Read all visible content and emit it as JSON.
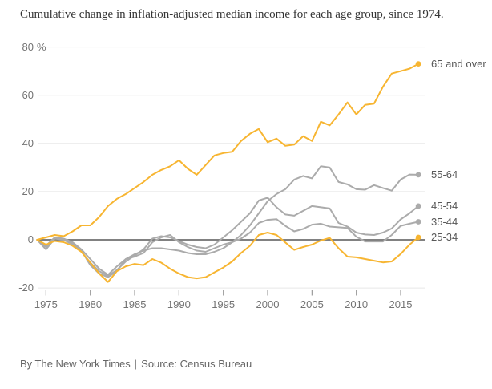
{
  "chart_data": {
    "type": "line",
    "title": "Cumulative change in inflation-adjusted median income for each age group, since 1974.",
    "x": [
      1974,
      1975,
      1976,
      1977,
      1978,
      1979,
      1980,
      1981,
      1982,
      1983,
      1984,
      1985,
      1986,
      1987,
      1988,
      1989,
      1990,
      1991,
      1992,
      1993,
      1994,
      1995,
      1996,
      1997,
      1998,
      1999,
      2000,
      2001,
      2002,
      2003,
      2004,
      2005,
      2006,
      2007,
      2008,
      2009,
      2010,
      2011,
      2012,
      2013,
      2014,
      2015,
      2016,
      2017
    ],
    "series": [
      {
        "name": "65 and over",
        "slug": "65-and-over",
        "color": "#f7b531",
        "values": [
          0,
          1,
          2,
          1.5,
          3.5,
          6,
          6,
          9.5,
          14,
          17,
          19,
          21.5,
          24,
          27,
          29,
          30.5,
          33,
          29.5,
          27,
          31,
          35,
          36,
          36.5,
          41,
          44,
          46,
          40.5,
          42,
          39,
          39.5,
          43,
          41,
          49,
          47.5,
          52,
          57,
          52,
          56,
          56.5,
          63.5,
          69,
          70,
          71,
          73
        ]
      },
      {
        "name": "55-64",
        "slug": "55-64",
        "color": "#ababab",
        "values": [
          0,
          -3,
          1,
          0.5,
          -1,
          -4,
          -8,
          -12,
          -14.5,
          -11,
          -8,
          -6,
          -4.5,
          -3.5,
          -3.5,
          -4,
          -4.5,
          -5.5,
          -6,
          -6,
          -5,
          -3.5,
          -1,
          2,
          6,
          11,
          16,
          19,
          21,
          25,
          26.5,
          25.5,
          30.5,
          30,
          24,
          23,
          21,
          20.8,
          22.7,
          21.5,
          20.4,
          25,
          27.1,
          27
        ]
      },
      {
        "name": "45-54",
        "slug": "45-54",
        "color": "#ababab",
        "values": [
          0,
          -4,
          0.5,
          0,
          -2,
          -5,
          -9.5,
          -13,
          -15,
          -12.5,
          -9,
          -6.5,
          -4,
          0.5,
          1.5,
          1,
          -0.5,
          -2,
          -3,
          -3.5,
          -2,
          1,
          4,
          7.5,
          11,
          16.3,
          17.5,
          13.5,
          10.5,
          10,
          12,
          14,
          13.5,
          13,
          7,
          5.5,
          3,
          2.2,
          2,
          3,
          4.7,
          8.5,
          11,
          14
        ]
      },
      {
        "name": "35-44",
        "slug": "35-44",
        "color": "#ababab",
        "values": [
          0,
          -2.5,
          1,
          0,
          -1.5,
          -4.5,
          -10.5,
          -14,
          -15.5,
          -13,
          -8,
          -7,
          -5.5,
          -1,
          1,
          2,
          -1,
          -3,
          -4.5,
          -5,
          -3.5,
          -2,
          -1,
          0.5,
          3,
          7,
          8.3,
          8.6,
          5.8,
          3.5,
          4.5,
          6.3,
          6.7,
          5.5,
          5.2,
          4.9,
          1.3,
          -0.7,
          -0.7,
          -0.7,
          2,
          5.8,
          6.7,
          7.5
        ]
      },
      {
        "name": "25-34",
        "slug": "25-34",
        "color": "#f7b531",
        "values": [
          0,
          -2,
          -0.5,
          -1,
          -2.5,
          -5,
          -9.5,
          -14,
          -17.5,
          -13,
          -11,
          -10,
          -10.5,
          -8,
          -9.5,
          -12,
          -14,
          -15.5,
          -16,
          -15.5,
          -13.5,
          -11.5,
          -9,
          -5.5,
          -2.5,
          2,
          3,
          2,
          -1.1,
          -4.2,
          -3,
          -2,
          -0.3,
          0.8,
          -3.5,
          -7,
          -7.3,
          -8,
          -8.7,
          -9.4,
          -9,
          -5.9,
          -2,
          1
        ]
      }
    ],
    "y_axis": {
      "unit": "%",
      "ticks": [
        {
          "value": 80,
          "label": "80",
          "suffix": "%"
        },
        {
          "value": 60,
          "label": "60"
        },
        {
          "value": 40,
          "label": "40"
        },
        {
          "value": 20,
          "label": "20"
        },
        {
          "value": 0,
          "label": "0"
        },
        {
          "value": -20,
          "label": "-20"
        }
      ]
    },
    "x_axis": {
      "ticks": [
        {
          "value": 1975,
          "label": "1975"
        },
        {
          "value": 1980,
          "label": "1980"
        },
        {
          "value": 1985,
          "label": "1985"
        },
        {
          "value": 1990,
          "label": "1990"
        },
        {
          "value": 1995,
          "label": "1995"
        },
        {
          "value": 2000,
          "label": "2000"
        },
        {
          "value": 2005,
          "label": "2005"
        },
        {
          "value": 2010,
          "label": "2010"
        },
        {
          "value": 2015,
          "label": "2015"
        }
      ]
    },
    "xlim": [
      1974,
      2017
    ],
    "ylim": [
      -20,
      80
    ],
    "grid": "horizontal",
    "zero_line": true,
    "legend_position": "right-of-line-ends"
  },
  "colors": {
    "accent_yellow": "#f7b531",
    "series_gray": "#ababab",
    "zero_line": "#6f6f6f",
    "gridline": "#e8e8e8",
    "tick": "#9b9b9b",
    "axis_text": "#737373",
    "label_text": "#585858",
    "title_text": "#353535",
    "footer_text": "#666666"
  },
  "footer": {
    "byline": "By The New York Times",
    "separator": "|",
    "source": "Source: Census Bureau"
  }
}
